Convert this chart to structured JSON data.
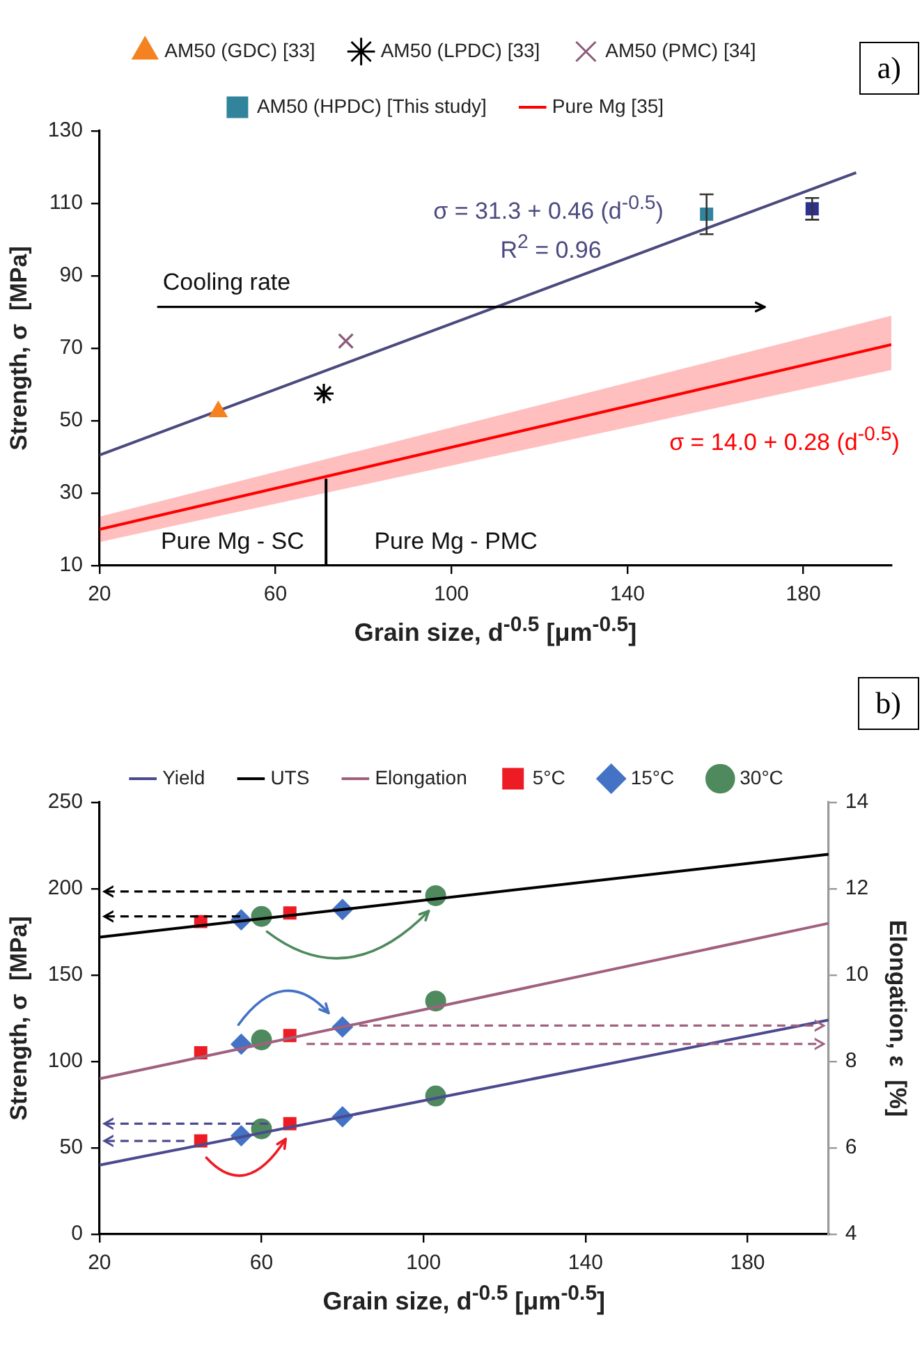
{
  "chart_data": [
    {
      "type": "scatter",
      "xlabel": "Grain size, d$^{-0.5}$  [μm$^{-0.5}$]",
      "ylabel": "Strength, σ  [MPa]",
      "xlim": [
        20,
        200
      ],
      "xticks": [
        20,
        60,
        100,
        140,
        180
      ],
      "ylim": [
        10,
        130
      ],
      "yticks": [
        10,
        30,
        50,
        70,
        90,
        110,
        130
      ],
      "legend": "top",
      "ref_lines": [
        {
          "axis": "x",
          "value": 71.5,
          "color": "#000000"
        }
      ],
      "annotations": [
        "σ = 31.3 + 0.46 (d$^{-0.5}$)",
        "R$^{2}$ = 0.96",
        "Cooling rate",
        "σ = 14.0 + 0.28 (d$^{-0.5}$)",
        "Pure Mg - SC",
        "Pure Mg - PMC",
        "a)"
      ],
      "series": [
        {
          "name": "AM50 (GDC) [33]",
          "type": "scatter",
          "marker": "triangle",
          "color": "#f58220",
          "x": [
            47
          ],
          "values": [
            52.5
          ]
        },
        {
          "name": "AM50 (LPDC) [33]",
          "type": "scatter",
          "color": "#000000",
          "x": [
            71
          ],
          "values": [
            57.5
          ]
        },
        {
          "name": "AM50 (PMC) [34]",
          "type": "scatter",
          "marker": "cross",
          "color": "#8e5a7a",
          "x": [
            76
          ],
          "values": [
            72
          ]
        },
        {
          "name": "AM50 (HPDC) [This study]",
          "type": "scatter",
          "marker": "square",
          "color": "#31849b",
          "colors": [
            "#31849b",
            "#2e3192"
          ],
          "x": [
            158,
            182
          ],
          "values": [
            107,
            108.5
          ],
          "errors": [
            5.5,
            3
          ]
        },
        {
          "name": "Pure Mg [35]",
          "type": "line",
          "marker": "none",
          "color": "#ff0000",
          "x": [
            20,
            200
          ],
          "values": [
            20,
            71
          ],
          "lower": [
            16.5,
            64
          ],
          "upper": [
            23.5,
            79
          ]
        },
        {
          "type": "line",
          "marker": "none",
          "color": "#4b4a7f",
          "x": [
            20,
            192
          ],
          "values": [
            40.5,
            118.5
          ]
        }
      ]
    },
    {
      "type": "scatter",
      "xlabel": "Grain size, d$^{-0.5}$  [μm$^{-0.5}$]",
      "ylabel": "Strength, σ  [MPa]",
      "y2label": "Elongation, ε  [%]",
      "xlim": [
        20,
        200
      ],
      "xticks": [
        20,
        60,
        100,
        140,
        180
      ],
      "ylim": [
        0,
        250
      ],
      "yticks": [
        0,
        50,
        100,
        150,
        200,
        250
      ],
      "y2lim": [
        4,
        14
      ],
      "y2ticks": [
        4,
        6,
        8,
        10,
        12,
        14
      ],
      "legend": "top",
      "annotations": [
        "b)"
      ],
      "series": [
        {
          "name": "Yield",
          "type": "line",
          "marker": "none",
          "color": "#4b4a8f",
          "x": [
            20,
            200
          ],
          "values": [
            40,
            124
          ]
        },
        {
          "name": "UTS",
          "type": "line",
          "marker": "none",
          "color": "#000000",
          "x": [
            20,
            200
          ],
          "values": [
            172,
            220
          ]
        },
        {
          "name": "Elongation",
          "type": "line",
          "marker": "none",
          "color": "#a0607f",
          "axis": "y2",
          "x": [
            20,
            200
          ],
          "values": [
            7.6,
            11.2
          ]
        },
        {
          "name": "5°C",
          "type": "scatter",
          "marker": "square",
          "color": "#ed1c24",
          "x": [
            45,
            67,
            45,
            67
          ],
          "values": [
            54,
            64,
            181,
            186
          ]
        },
        {
          "type": "scatter",
          "marker": "square",
          "color": "#ed1c24",
          "axis": "y2",
          "x": [
            45,
            67
          ],
          "values": [
            8.2,
            8.6
          ]
        },
        {
          "name": "15°C",
          "type": "scatter",
          "marker": "diamond",
          "color": "#4472c4",
          "x": [
            55,
            80,
            55,
            80
          ],
          "values": [
            57,
            68,
            182,
            188
          ]
        },
        {
          "type": "scatter",
          "marker": "diamond",
          "color": "#4472c4",
          "axis": "y2",
          "x": [
            55,
            80
          ],
          "values": [
            8.4,
            8.8
          ]
        },
        {
          "name": "30°C",
          "type": "scatter",
          "marker": "circle",
          "color": "#4e8a5e",
          "x": [
            60,
            103,
            60,
            103
          ],
          "values": [
            61,
            80,
            184,
            196
          ]
        },
        {
          "type": "scatter",
          "marker": "circle",
          "color": "#4e8a5e",
          "axis": "y2",
          "x": [
            60,
            103
          ],
          "values": [
            8.5,
            9.4
          ]
        }
      ]
    }
  ]
}
